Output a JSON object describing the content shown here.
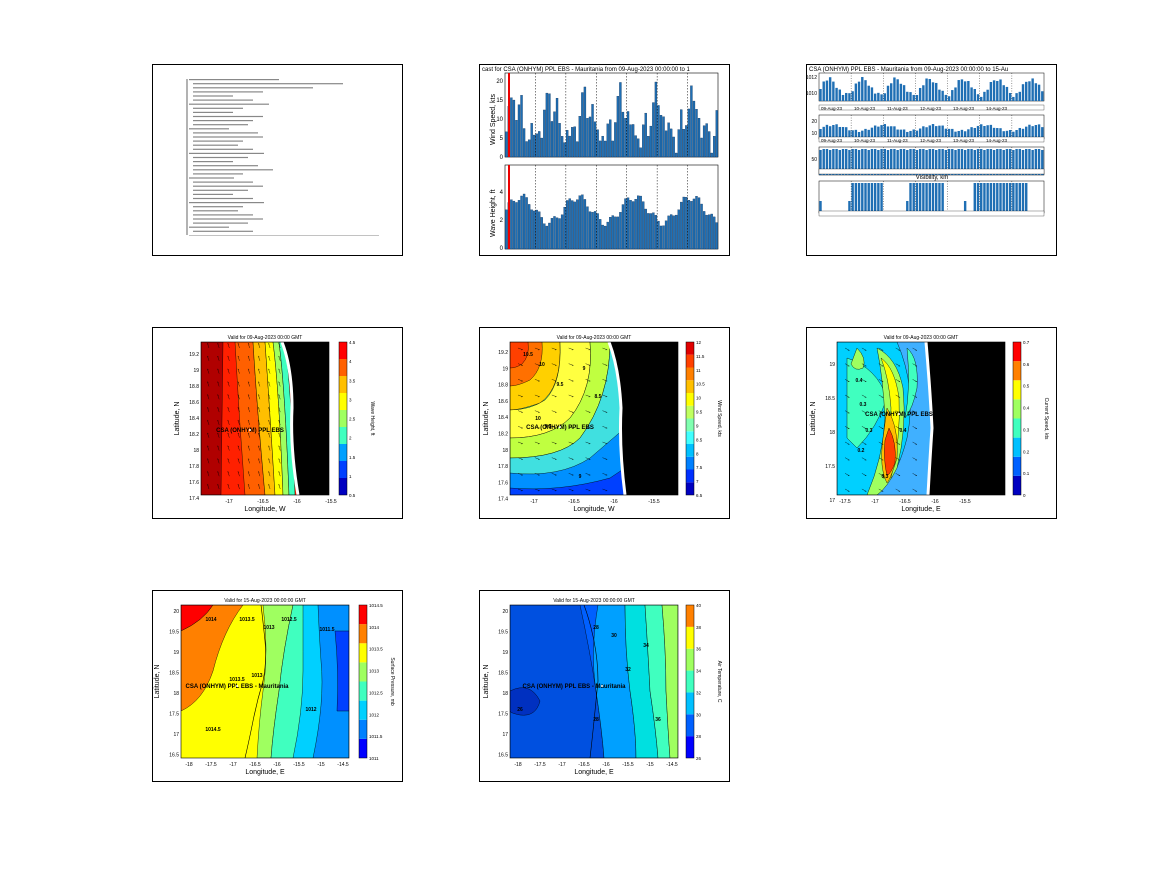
{
  "thumbnails": [
    {
      "name": "text-report"
    },
    {
      "name": "wind-wave-forecast-chart"
    },
    {
      "name": "multi-panel-bar-chart"
    },
    {
      "name": "wave-height-map"
    },
    {
      "name": "wind-speed-map"
    },
    {
      "name": "current-speed-map"
    },
    {
      "name": "surface-pressure-map"
    },
    {
      "name": "temperature-map"
    }
  ],
  "chart2": {
    "title": "cast for CSA (ONHYM) PPL EBS - Mauritania from 09-Aug-2023 00:00:00 to 1",
    "ylabel_top": "Wind Speed, kts",
    "ylabel_bottom": "Wave Height, ft",
    "top_ticks": [
      "20",
      "15",
      "10",
      "5",
      "0"
    ],
    "bottom_ticks": [
      "4",
      "2",
      "0"
    ]
  },
  "chart3": {
    "title": "CSA (ONHYM) PPL EBS - Mauritania from 09-Aug-2023 00:00:00 to 15-Au",
    "top_ticks": [
      "1012",
      "1010"
    ],
    "mid_ticks": [
      "20",
      "10"
    ],
    "mid2_ticks": [
      "50"
    ],
    "bottom_title": "Visibility, km",
    "date_labels": [
      "09-Aug-23",
      "10-Aug-23",
      "11-Aug-23",
      "12-Aug-23",
      "13-Aug-23",
      "14-Aug-23"
    ]
  },
  "map_wave": {
    "title": "Valid for 09-Aug-2023 00:00 GMT",
    "site": "CSA (ONHYM) PPL EBS",
    "xlabel": "Longitude, W",
    "ylabel": "Latitude, N",
    "cbar_label": "Wave Height, ft",
    "xticks": [
      "-17",
      "-16.5",
      "-16",
      "-15.5"
    ],
    "yticks": [
      "19.2",
      "19",
      "18.8",
      "18.6",
      "18.4",
      "18.2",
      "18",
      "17.8",
      "17.6",
      "17.4"
    ],
    "cbar_ticks": [
      "4.5",
      "4",
      "3.5",
      "3",
      "2.5",
      "2",
      "1.5",
      "1",
      "0.5"
    ]
  },
  "map_wind": {
    "title": "Valid for 09-Aug-2023 00:00 GMT",
    "site": "CSA (ONHYM) PPL EBS",
    "xlabel": "Longitude, W",
    "ylabel": "Latitude, N",
    "cbar_label": "Wind Speed, kts",
    "xticks": [
      "-17",
      "-16.5",
      "-16",
      "-15.5"
    ],
    "yticks": [
      "19.2",
      "19",
      "18.8",
      "18.6",
      "18.4",
      "18.2",
      "18",
      "17.8",
      "17.6",
      "17.4"
    ],
    "cbar_ticks": [
      "12",
      "11.5",
      "11",
      "10.5",
      "10",
      "9.5",
      "9",
      "8.5",
      "8",
      "7.5",
      "7",
      "6.5"
    ],
    "contour_labels": [
      "10.5",
      "10",
      "9.5",
      "9",
      "8.5",
      "9.5",
      "10",
      "9"
    ]
  },
  "map_current": {
    "title": "Valid for 09-Aug-2023 00:00 GMT",
    "site": "CSA (ONHYM) PPL EBS",
    "xlabel": "Longitude, E",
    "ylabel": "Latitude, N",
    "cbar_label": "Current Speed, kts",
    "xticks": [
      "-17.5",
      "-17",
      "-16.5",
      "-16",
      "-15.5"
    ],
    "yticks": [
      "19",
      "18.5",
      "18",
      "17.5",
      "17"
    ],
    "cbar_ticks": [
      "0.7",
      "0.6",
      "0.5",
      "0.4",
      "0.3",
      "0.2",
      "0.1",
      "0"
    ],
    "contour_labels": [
      "0.4",
      "0.3",
      "0.2",
      "0.3",
      "0.4",
      "0.3"
    ]
  },
  "map_pressure": {
    "title": "Valid for 15-Aug-2023 00:00:00 GMT",
    "site": "CSA (ONHYM) PPL EBS - Mauritania",
    "xlabel": "Longitude, E",
    "ylabel": "Latitude, N",
    "cbar_label": "Surface Pressure, mb",
    "xticks": [
      "-18",
      "-17.5",
      "-17",
      "-16.5",
      "-16",
      "-15.5",
      "-15",
      "-14.5"
    ],
    "yticks": [
      "20",
      "19.5",
      "19",
      "18.5",
      "18",
      "17.5",
      "17",
      "16.5"
    ],
    "cbar_ticks": [
      "1014.5",
      "1014",
      "1013.5",
      "1013",
      "1012.5",
      "1012",
      "1011.5",
      "1011"
    ],
    "contour_labels": [
      "1014",
      "1013.5",
      "1013",
      "1012.5",
      "1013",
      "1012",
      "1013.5",
      "1014.5",
      "1011.5"
    ]
  },
  "map_temp": {
    "title": "Valid for 15-Aug-2023 00:00:00 GMT",
    "site": "CSA (ONHYM) PPL EBS - Mauritania",
    "xlabel": "Longitude, E",
    "ylabel": "Latitude, N",
    "cbar_label": "Air Temperature, C",
    "xticks": [
      "-18",
      "-17.5",
      "-17",
      "-16.5",
      "-16",
      "-15.5",
      "-15",
      "-14.5"
    ],
    "yticks": [
      "20",
      "19.5",
      "19",
      "18.5",
      "18",
      "17.5",
      "17",
      "16.5"
    ],
    "cbar_ticks": [
      "40",
      "38",
      "36",
      "34",
      "32",
      "30",
      "28",
      "26"
    ],
    "contour_labels": [
      "28",
      "30",
      "32",
      "34",
      "36",
      "28",
      "26"
    ]
  }
}
